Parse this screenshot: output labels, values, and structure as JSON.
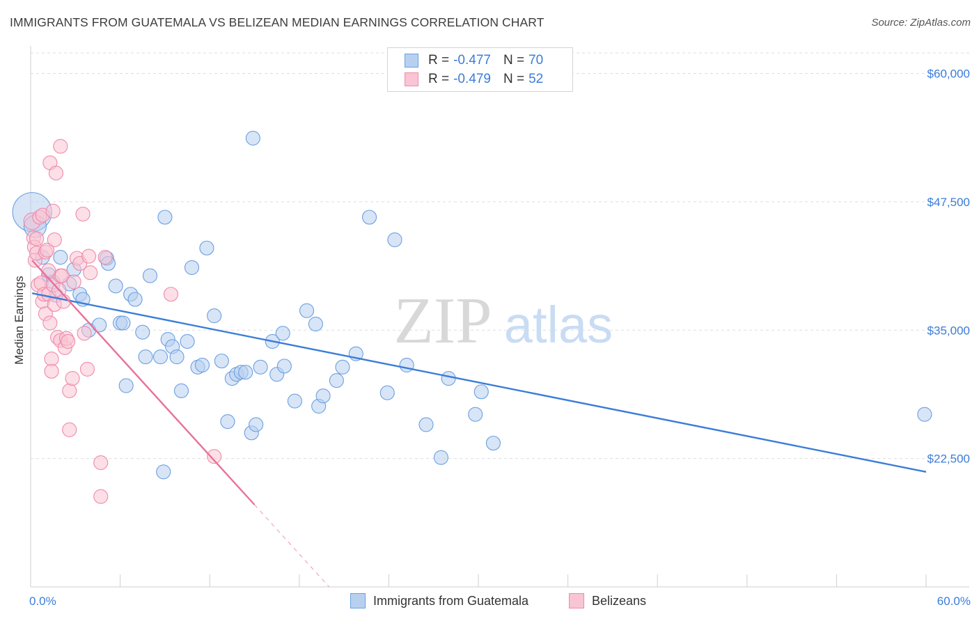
{
  "title": "IMMIGRANTS FROM GUATEMALA VS BELIZEAN MEDIAN EARNINGS CORRELATION CHART",
  "source": "Source: ZipAtlas.com",
  "watermark": {
    "zip": "ZIP",
    "atlas": "atlas"
  },
  "legend": {
    "r_label": "R =",
    "n_label": "N =",
    "rows": [
      {
        "r": "-0.477",
        "n": "70",
        "fill": "#b8d0f0",
        "stroke": "#6a9fe0"
      },
      {
        "r": "-0.479",
        "n": "52",
        "fill": "#f9c4d4",
        "stroke": "#ee8aaa"
      }
    ]
  },
  "bottom_legend": [
    {
      "label": "Immigrants from Guatemala",
      "fill": "#b8d0f0",
      "stroke": "#6a9fe0"
    },
    {
      "label": "Belizeans",
      "fill": "#f9c4d4",
      "stroke": "#ee8aaa"
    }
  ],
  "chart_data": {
    "type": "scatter",
    "title": "IMMIGRANTS FROM GUATEMALA VS BELIZEAN MEDIAN EARNINGS CORRELATION CHART",
    "xlabel": "",
    "ylabel": "Median Earnings",
    "xlim": [
      0,
      60
    ],
    "ylim": [
      10000,
      62000
    ],
    "x_tick_labels": [
      "0.0%",
      "60.0%"
    ],
    "y_ticks": [
      {
        "value": 22500,
        "label": "$22,500"
      },
      {
        "value": 35000,
        "label": "$35,000"
      },
      {
        "value": 47500,
        "label": "$47,500"
      },
      {
        "value": 60000,
        "label": "$60,000"
      }
    ],
    "grid": true,
    "series": [
      {
        "name": "Immigrants from Guatemala",
        "color": "#3b7dd8",
        "fill": "#b8d0f0",
        "trend": {
          "x0": 0.1,
          "y0": 38600,
          "x1": 60,
          "y1": 21200,
          "dashed_to": null
        },
        "points": [
          [
            0.1,
            46500,
            28
          ],
          [
            0.3,
            45100,
            16
          ],
          [
            0.8,
            42100,
            10
          ],
          [
            1.2,
            40400,
            10
          ],
          [
            1.5,
            39700,
            10
          ],
          [
            1.7,
            38400,
            10
          ],
          [
            2.0,
            42100,
            10
          ],
          [
            2.6,
            39500,
            10
          ],
          [
            2.9,
            40900,
            10
          ],
          [
            3.3,
            38500,
            10
          ],
          [
            3.5,
            38000,
            10
          ],
          [
            3.9,
            35000,
            10
          ],
          [
            4.6,
            35500,
            10
          ],
          [
            5.1,
            42000,
            10
          ],
          [
            5.2,
            41500,
            10
          ],
          [
            5.7,
            39300,
            10
          ],
          [
            6.0,
            35700,
            10
          ],
          [
            6.2,
            35700,
            10
          ],
          [
            6.4,
            29600,
            10
          ],
          [
            6.7,
            38500,
            10
          ],
          [
            7.0,
            38000,
            10
          ],
          [
            7.5,
            34800,
            10
          ],
          [
            7.7,
            32400,
            10
          ],
          [
            8.0,
            40300,
            10
          ],
          [
            8.7,
            32400,
            10
          ],
          [
            8.9,
            21200,
            10
          ],
          [
            9.0,
            46000,
            10
          ],
          [
            9.2,
            34100,
            10
          ],
          [
            9.5,
            33400,
            10
          ],
          [
            9.8,
            32400,
            10
          ],
          [
            10.1,
            29100,
            10
          ],
          [
            10.5,
            33900,
            10
          ],
          [
            10.8,
            41100,
            10
          ],
          [
            11.2,
            31400,
            10
          ],
          [
            11.5,
            31600,
            10
          ],
          [
            11.8,
            43000,
            10
          ],
          [
            12.3,
            36400,
            10
          ],
          [
            12.8,
            32000,
            10
          ],
          [
            13.2,
            26100,
            10
          ],
          [
            13.5,
            30300,
            10
          ],
          [
            13.8,
            30700,
            10
          ],
          [
            14.1,
            30900,
            10
          ],
          [
            14.4,
            30900,
            10
          ],
          [
            14.8,
            25000,
            10
          ],
          [
            14.9,
            53700,
            10
          ],
          [
            15.1,
            25800,
            10
          ],
          [
            15.4,
            31400,
            10
          ],
          [
            16.2,
            33900,
            10
          ],
          [
            16.5,
            30700,
            10
          ],
          [
            16.9,
            34700,
            10
          ],
          [
            17.0,
            31500,
            10
          ],
          [
            17.7,
            28100,
            10
          ],
          [
            18.5,
            36900,
            10
          ],
          [
            19.1,
            35600,
            10
          ],
          [
            19.3,
            27600,
            10
          ],
          [
            19.6,
            28600,
            10
          ],
          [
            20.5,
            30100,
            10
          ],
          [
            20.9,
            31400,
            10
          ],
          [
            21.8,
            32700,
            10
          ],
          [
            22.7,
            46000,
            10
          ],
          [
            23.9,
            28900,
            10
          ],
          [
            24.4,
            43800,
            10
          ],
          [
            25.2,
            31600,
            10
          ],
          [
            26.5,
            25800,
            10
          ],
          [
            27.5,
            22600,
            10
          ],
          [
            28.0,
            30300,
            10
          ],
          [
            29.8,
            26800,
            10
          ],
          [
            30.2,
            29000,
            10
          ],
          [
            31.0,
            24000,
            10
          ],
          [
            59.9,
            26800,
            10
          ]
        ]
      },
      {
        "name": "Belizeans",
        "color": "#e8719a",
        "fill": "#f9c4d4",
        "trend": {
          "x0": 0.1,
          "y0": 41800,
          "x1": 15.0,
          "y1": 18000,
          "dashed_to": [
            20.0,
            10000
          ]
        },
        "points": [
          [
            0.1,
            45600,
            12
          ],
          [
            0.2,
            44000,
            10
          ],
          [
            0.25,
            43100,
            10
          ],
          [
            0.3,
            41800,
            10
          ],
          [
            0.4,
            42500,
            10
          ],
          [
            0.5,
            39400,
            10
          ],
          [
            0.6,
            46000,
            10
          ],
          [
            0.7,
            39600,
            10
          ],
          [
            0.8,
            46200,
            10
          ],
          [
            0.8,
            37800,
            10
          ],
          [
            0.9,
            38500,
            10
          ],
          [
            1.0,
            36600,
            10
          ],
          [
            1.0,
            42600,
            10
          ],
          [
            1.1,
            42800,
            10
          ],
          [
            1.2,
            38500,
            10
          ],
          [
            1.3,
            51300,
            10
          ],
          [
            1.3,
            35700,
            10
          ],
          [
            1.4,
            32200,
            10
          ],
          [
            1.4,
            31000,
            10
          ],
          [
            1.5,
            46600,
            10
          ],
          [
            1.5,
            39400,
            10
          ],
          [
            1.6,
            37500,
            10
          ],
          [
            1.6,
            43800,
            10
          ],
          [
            1.7,
            50300,
            10
          ],
          [
            1.8,
            34300,
            10
          ],
          [
            1.9,
            38900,
            10
          ],
          [
            2.0,
            52900,
            10
          ],
          [
            2.0,
            34000,
            10
          ],
          [
            2.0,
            40300,
            10
          ],
          [
            2.1,
            40300,
            10
          ],
          [
            2.2,
            37800,
            10
          ],
          [
            2.3,
            33300,
            10
          ],
          [
            2.4,
            34200,
            10
          ],
          [
            2.5,
            33900,
            10
          ],
          [
            2.6,
            29100,
            10
          ],
          [
            2.6,
            25300,
            10
          ],
          [
            2.8,
            30300,
            10
          ],
          [
            2.9,
            39700,
            10
          ],
          [
            3.1,
            42000,
            10
          ],
          [
            3.3,
            41500,
            10
          ],
          [
            3.5,
            46300,
            10
          ],
          [
            3.6,
            34700,
            10
          ],
          [
            3.8,
            31200,
            10
          ],
          [
            3.9,
            42200,
            10
          ],
          [
            4.0,
            40600,
            10
          ],
          [
            4.7,
            22100,
            10
          ],
          [
            4.7,
            18800,
            10
          ],
          [
            5.0,
            42100,
            10
          ],
          [
            9.4,
            38500,
            10
          ],
          [
            12.3,
            22700,
            10
          ],
          [
            0.4,
            43900,
            10
          ],
          [
            1.2,
            40800,
            10
          ]
        ]
      }
    ]
  }
}
